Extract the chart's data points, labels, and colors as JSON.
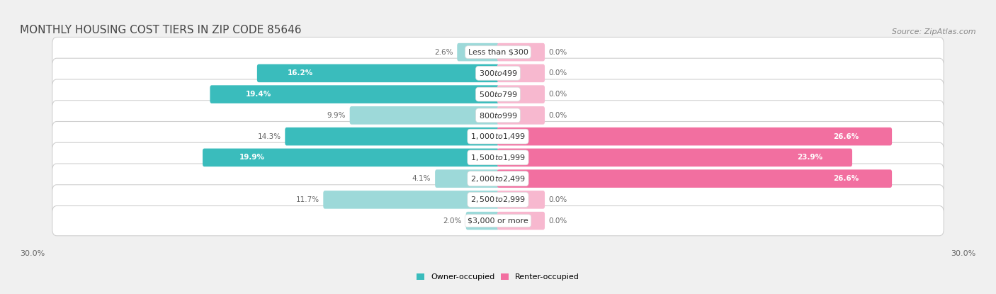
{
  "title": "MONTHLY HOUSING COST TIERS IN ZIP CODE 85646",
  "source": "Source: ZipAtlas.com",
  "categories": [
    "Less than $300",
    "$300 to $499",
    "$500 to $799",
    "$800 to $999",
    "$1,000 to $1,499",
    "$1,500 to $1,999",
    "$2,000 to $2,499",
    "$2,500 to $2,999",
    "$3,000 or more"
  ],
  "owner_values": [
    2.6,
    16.2,
    19.4,
    9.9,
    14.3,
    19.9,
    4.1,
    11.7,
    2.0
  ],
  "renter_values": [
    0.0,
    0.0,
    0.0,
    0.0,
    26.6,
    23.9,
    26.6,
    0.0,
    0.0
  ],
  "owner_color_dark": "#3abcbc",
  "owner_color_light": "#9dd9d9",
  "renter_color_dark": "#f26fa0",
  "renter_color_light": "#f7b8cf",
  "owner_label": "Owner-occupied",
  "renter_label": "Renter-occupied",
  "max_value": 30.0,
  "stub_value": 3.0,
  "background_color": "#f0f0f0",
  "row_bg_color": "#ffffff",
  "row_border_color": "#d0d0d0",
  "title_color": "#444444",
  "source_color": "#888888",
  "label_color": "#666666",
  "cat_label_color": "#333333",
  "value_label_color_outside": "#666666",
  "value_label_color_inside": "#ffffff",
  "title_fontsize": 11,
  "source_fontsize": 8,
  "axis_fontsize": 8,
  "bar_label_fontsize": 7.5,
  "category_fontsize": 8
}
